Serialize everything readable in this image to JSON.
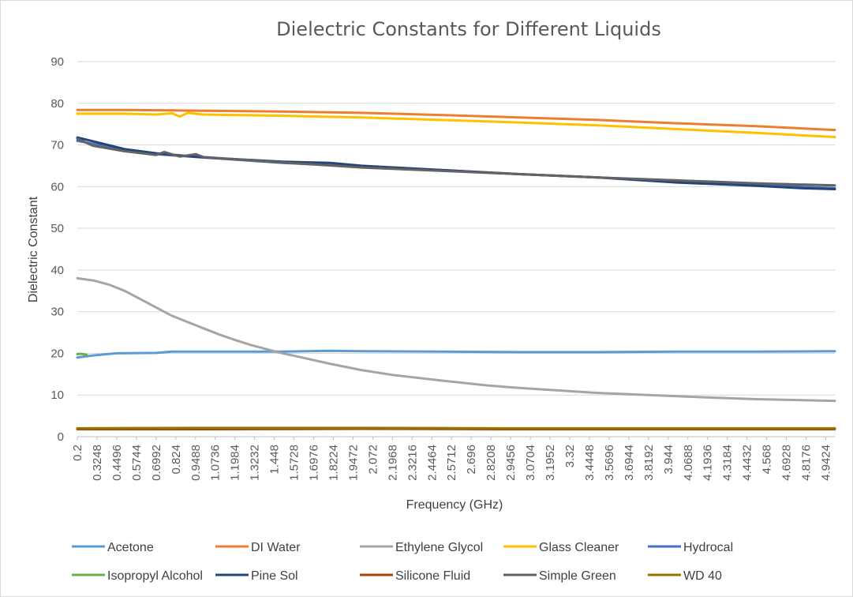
{
  "chart_data": {
    "type": "line",
    "title": "Dielectric Constants for Different Liquids",
    "xlabel": "Frequency (GHz)",
    "ylabel": "Dielectric Constant",
    "ylim": [
      0,
      90
    ],
    "yticks": [
      "0",
      "10",
      "20",
      "30",
      "40",
      "50",
      "60",
      "70",
      "80",
      "90"
    ],
    "xlim": [
      0.2,
      5.0
    ],
    "xticks": [
      "0.2",
      "0.3248",
      "0.4496",
      "0.5744",
      "0.6992",
      "0.824",
      "0.9488",
      "1.0736",
      "1.1984",
      "1.3232",
      "1.448",
      "1.5728",
      "1.6976",
      "1.8224",
      "1.9472",
      "2.072",
      "2.1968",
      "2.3216",
      "2.4464",
      "2.5712",
      "2.696",
      "2.8208",
      "2.9456",
      "3.0704",
      "3.1952",
      "3.32",
      "3.4448",
      "3.5696",
      "3.6944",
      "3.8192",
      "3.944",
      "4.0688",
      "4.1936",
      "4.3184",
      "4.4432",
      "4.568",
      "4.6928",
      "4.8176",
      "4.9424"
    ],
    "grid": true,
    "legend_position": "bottom",
    "series": [
      {
        "name": "Acetone",
        "color": "#5b9bd5",
        "x": [
          0.2,
          0.3,
          0.45,
          0.7,
          0.8,
          1.0,
          1.5,
          1.8,
          2.0,
          2.5,
          3.0,
          3.5,
          4.0,
          4.5,
          5.0
        ],
        "y": [
          19.0,
          19.5,
          20.0,
          20.1,
          20.4,
          20.4,
          20.4,
          20.6,
          20.5,
          20.4,
          20.3,
          20.3,
          20.4,
          20.4,
          20.5
        ]
      },
      {
        "name": "DI Water",
        "color": "#ed7d31",
        "x": [
          0.2,
          0.5,
          0.8,
          1.0,
          1.5,
          2.0,
          2.5,
          3.0,
          3.5,
          4.0,
          4.5,
          5.0
        ],
        "y": [
          78.4,
          78.4,
          78.3,
          78.2,
          78.0,
          77.7,
          77.2,
          76.6,
          76.0,
          75.2,
          74.5,
          73.6
        ]
      },
      {
        "name": "Ethylene Glycol",
        "color": "#a5a5a5",
        "x": [
          0.2,
          0.3,
          0.4,
          0.5,
          0.6,
          0.7,
          0.8,
          0.9,
          1.0,
          1.1,
          1.2,
          1.3,
          1.4,
          1.5,
          1.6,
          1.8,
          2.0,
          2.2,
          2.5,
          2.8,
          3.0,
          3.5,
          4.0,
          4.5,
          5.0
        ],
        "y": [
          38.0,
          37.5,
          36.5,
          35.0,
          33.0,
          31.0,
          29.0,
          27.5,
          26.0,
          24.5,
          23.2,
          22.0,
          21.0,
          20.0,
          19.2,
          17.5,
          16.0,
          14.8,
          13.5,
          12.3,
          11.7,
          10.5,
          9.7,
          9.0,
          8.6
        ]
      },
      {
        "name": "Glass Cleaner",
        "color": "#ffc000",
        "x": [
          0.2,
          0.5,
          0.7,
          0.8,
          0.85,
          0.9,
          1.0,
          1.5,
          2.0,
          2.5,
          3.0,
          3.5,
          4.0,
          4.5,
          5.0
        ],
        "y": [
          77.5,
          77.5,
          77.3,
          77.6,
          76.8,
          77.7,
          77.3,
          77.0,
          76.6,
          76.0,
          75.4,
          74.7,
          73.8,
          72.9,
          71.9
        ]
      },
      {
        "name": "Hydrocal",
        "color": "#4472c4",
        "x": [
          0.2,
          0.5,
          0.7,
          1.0,
          1.5,
          2.0,
          2.5,
          3.0,
          3.5,
          4.0,
          4.5,
          5.0
        ],
        "y": [
          71.0,
          68.8,
          67.8,
          67.0,
          65.7,
          64.8,
          64.0,
          63.0,
          62.2,
          61.2,
          60.4,
          59.6
        ]
      },
      {
        "name": "Isopropyl Alcohol",
        "color": "#70ad47",
        "x": [
          0.2,
          0.22,
          0.24,
          0.26
        ],
        "y": [
          19.8,
          19.9,
          19.8,
          19.6
        ]
      },
      {
        "name": "Pine Sol",
        "color": "#264478",
        "x": [
          0.2,
          0.5,
          0.7,
          1.0,
          1.5,
          1.8,
          2.0,
          2.5,
          3.0,
          3.5,
          4.0,
          4.5,
          4.8,
          5.0
        ],
        "y": [
          71.8,
          69.0,
          68.0,
          67.0,
          66.0,
          65.7,
          65.0,
          64.0,
          63.0,
          62.2,
          61.0,
          60.2,
          59.6,
          59.4
        ]
      },
      {
        "name": "Silicone Fluid",
        "color": "#9e480e",
        "x": [
          0.2,
          1.0,
          2.0,
          3.0,
          4.0,
          5.0
        ],
        "y": [
          1.8,
          1.8,
          1.9,
          1.8,
          1.8,
          1.8
        ]
      },
      {
        "name": "Simple Green",
        "color": "#636363",
        "x": [
          0.2,
          0.3,
          0.5,
          0.7,
          0.75,
          0.85,
          0.95,
          1.0,
          1.5,
          2.0,
          2.5,
          3.0,
          3.5,
          4.0,
          4.5,
          5.0
        ],
        "y": [
          71.5,
          69.8,
          68.5,
          67.6,
          68.3,
          67.2,
          67.8,
          67.1,
          65.8,
          64.6,
          63.8,
          63.0,
          62.2,
          61.5,
          60.8,
          60.3
        ]
      },
      {
        "name": "WD 40",
        "color": "#997300",
        "x": [
          0.2,
          1.0,
          2.0,
          3.0,
          4.0,
          5.0
        ],
        "y": [
          2.0,
          2.1,
          2.1,
          2.0,
          2.0,
          2.0
        ]
      }
    ]
  }
}
